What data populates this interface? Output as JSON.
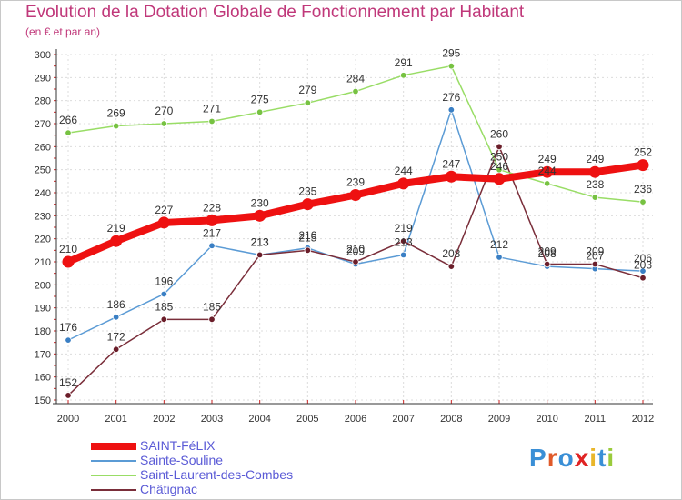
{
  "title": "Evolution de la Dotation Globale de Fonctionnement par Habitant",
  "subtitle": "(en € et par an)",
  "logo": {
    "letters": [
      "P",
      "r",
      "o",
      "x",
      "i",
      "t",
      "i"
    ],
    "colors": [
      "#3a8fd6",
      "#e05a2a",
      "#3a8fd6",
      "#e02424",
      "#e9b62b",
      "#3a8fd6",
      "#9acb3c"
    ]
  },
  "chart_data": {
    "type": "line",
    "title": "Evolution de la Dotation Globale de Fonctionnement par Habitant",
    "subtitle": "(en € et par an)",
    "xlabel": "",
    "ylabel": "",
    "ylim": [
      150,
      300
    ],
    "y_ticks": [
      "150",
      "160",
      "170",
      "180",
      "190",
      "200",
      "210",
      "220",
      "230",
      "240",
      "250",
      "260",
      "270",
      "280",
      "290",
      "300"
    ],
    "categories": [
      "2000",
      "2001",
      "2002",
      "2003",
      "2004",
      "2005",
      "2006",
      "2007",
      "2008",
      "2009",
      "2010",
      "2011",
      "2012"
    ],
    "grid": true,
    "legend_position": "bottom-left",
    "series": [
      {
        "name": "Sainte-Souline",
        "color": "#5b9bd5",
        "point_color": "#3a7fc4",
        "values": [
          176,
          186,
          196,
          217,
          213,
          216,
          209,
          213,
          276,
          212,
          208,
          207,
          206
        ],
        "labels": [
          "176",
          "186",
          "196",
          "217",
          "213",
          "216",
          "209",
          "213",
          "276",
          "212",
          "208",
          "207",
          "206"
        ]
      },
      {
        "name": "Châtignac",
        "color": "#7a2e3a",
        "point_color": "#6b1e2a",
        "values": [
          152,
          172,
          185,
          185,
          213,
          215,
          210,
          219,
          208,
          260,
          209,
          209,
          203
        ],
        "labels": [
          "152",
          "172",
          "185",
          "185",
          "213",
          "215",
          "210",
          "219",
          "208",
          "260",
          "209",
          "209",
          "203"
        ]
      },
      {
        "name": "Saint-Laurent-des-Combes",
        "color": "#99dd66",
        "point_color": "#77c242",
        "values": [
          266,
          269,
          270,
          271,
          275,
          279,
          284,
          291,
          295,
          250,
          244,
          238,
          236
        ],
        "labels": [
          "266",
          "269",
          "270",
          "271",
          "275",
          "279",
          "284",
          "291",
          "295",
          "250",
          "244",
          "238",
          "236"
        ]
      },
      {
        "name": "SAINT-FéLIX",
        "color": "#ee1111",
        "point_color": "#ee1111",
        "values": [
          210,
          219,
          227,
          228,
          230,
          235,
          239,
          244,
          247,
          246,
          249,
          249,
          252
        ],
        "labels": [
          "210",
          "219",
          "227",
          "228",
          "230",
          "235",
          "239",
          "244",
          "247",
          "246",
          "249",
          "249",
          "252"
        ]
      }
    ],
    "legend": [
      {
        "name": "SAINT-FéLIX",
        "color": "#ee1111",
        "weight": "thick"
      },
      {
        "name": "Sainte-Souline",
        "color": "#5b9bd5",
        "weight": "thin"
      },
      {
        "name": "Saint-Laurent-des-Combes",
        "color": "#99dd66",
        "weight": "thin"
      },
      {
        "name": "Châtignac",
        "color": "#7a2e3a",
        "weight": "thin"
      }
    ]
  }
}
